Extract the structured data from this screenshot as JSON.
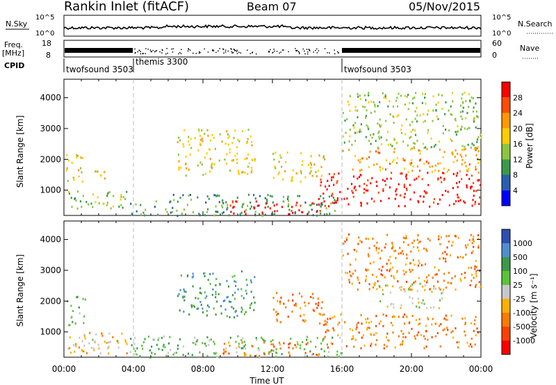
{
  "header": {
    "station": "Rankin Inlet (fitACF)",
    "beam": "Beam 07",
    "date": "05/Nov/2015"
  },
  "noise_panel": {
    "left_label": "N.Sky",
    "right_label": "N.Search",
    "left_ticks": [
      "10^5",
      "10^0"
    ],
    "right_ticks": [
      "10^5",
      "10^0"
    ]
  },
  "freq_panel": {
    "left_label_1": "Freq.",
    "left_label_2": "[MHz]",
    "right_label": "Nave",
    "left_ticks": [
      "18",
      "8"
    ],
    "right_ticks": [
      "60",
      "0"
    ]
  },
  "cpid_panel": {
    "label": "CPID",
    "segments": [
      {
        "name": "twofsound 3503",
        "start_h": 0,
        "end_h": 4
      },
      {
        "name": "themis 3300",
        "start_h": 4,
        "end_h": 16
      },
      {
        "name": "twofsound 3503",
        "start_h": 16,
        "end_h": 24
      }
    ]
  },
  "chart_data": [
    {
      "type": "heatmap",
      "title": "",
      "xlabel": "",
      "ylabel": "Slant Range [km]",
      "xlim_h": [
        0,
        24
      ],
      "ylim": [
        180,
        4600
      ],
      "yticks": [
        1000,
        2000,
        3000,
        4000
      ],
      "colorbar": {
        "label": "Power [dB]",
        "ticks": [
          "28",
          "24",
          "20",
          "16",
          "12",
          "8",
          "4"
        ],
        "colors": [
          "#ff0000",
          "#ff4d00",
          "#ff9900",
          "#ffcc00",
          "#8cc63f",
          "#3a9a4a",
          "#2a5fb0",
          "#0000ff"
        ]
      },
      "regions": [
        {
          "t0": 0.2,
          "t1": 3.6,
          "r0": 300,
          "r1": 1000,
          "level": 4
        },
        {
          "t0": 0.1,
          "t1": 1.2,
          "r0": 1200,
          "r1": 2200,
          "level": 3
        },
        {
          "t0": 1.6,
          "t1": 2.6,
          "r0": 1400,
          "r1": 1800,
          "level": 3
        },
        {
          "t0": 3.7,
          "t1": 16,
          "r0": 200,
          "r1": 900,
          "level": 5
        },
        {
          "t0": 9.5,
          "t1": 14.8,
          "r0": 250,
          "r1": 700,
          "level": 0
        },
        {
          "t0": 6.5,
          "t1": 11,
          "r0": 1500,
          "r1": 3000,
          "level": 3
        },
        {
          "t0": 12,
          "t1": 15,
          "r0": 1300,
          "r1": 2300,
          "level": 3
        },
        {
          "t0": 14.6,
          "t1": 24,
          "r0": 500,
          "r1": 1600,
          "level": 0
        },
        {
          "t0": 16,
          "t1": 24,
          "r0": 1600,
          "r1": 2400,
          "level": 2
        },
        {
          "t0": 16,
          "t1": 24,
          "r0": 2400,
          "r1": 4200,
          "level": 4
        }
      ]
    },
    {
      "type": "heatmap",
      "title": "",
      "xlabel": "Time UT",
      "ylabel": "Slant Range [km]",
      "xlim_h": [
        0,
        24
      ],
      "ylim": [
        180,
        4600
      ],
      "yticks": [
        1000,
        2000,
        3000,
        4000
      ],
      "xticklabels": [
        "00:00",
        "04:00",
        "08:00",
        "12:00",
        "16:00",
        "20:00",
        "00:00"
      ],
      "colorbar": {
        "label": "Velocity [m s⁻¹]",
        "ticks": [
          "1000",
          "500",
          "100",
          "25",
          "-25",
          "-100",
          "-500",
          "-1000"
        ],
        "colors": [
          "#2f4fb3",
          "#4f8fd0",
          "#3c9a4a",
          "#5cc33a",
          "#c8c8c8",
          "#ffb000",
          "#ff7a00",
          "#ff4000",
          "#ff0000"
        ]
      },
      "regions": [
        {
          "t0": 0.2,
          "t1": 3.6,
          "r0": 300,
          "r1": 1000,
          "level": 5
        },
        {
          "t0": 1,
          "t1": 3.5,
          "r0": 500,
          "r1": 800,
          "level": 4
        },
        {
          "t0": 0.1,
          "t1": 1.2,
          "r0": 1200,
          "r1": 2200,
          "level": 3
        },
        {
          "t0": 3.7,
          "t1": 16,
          "r0": 200,
          "r1": 900,
          "level": 3
        },
        {
          "t0": 9,
          "t1": 15,
          "r0": 250,
          "r1": 700,
          "level": 6
        },
        {
          "t0": 6.5,
          "t1": 11,
          "r0": 1500,
          "r1": 3000,
          "level": 2
        },
        {
          "t0": 12,
          "t1": 15,
          "r0": 1300,
          "r1": 2300,
          "level": 6
        },
        {
          "t0": 14.6,
          "t1": 24,
          "r0": 500,
          "r1": 1600,
          "level": 6
        },
        {
          "t0": 18,
          "t1": 22,
          "r0": 1800,
          "r1": 2600,
          "level": 4
        },
        {
          "t0": 16,
          "t1": 24,
          "r0": 2400,
          "r1": 4200,
          "level": 6
        }
      ]
    }
  ]
}
